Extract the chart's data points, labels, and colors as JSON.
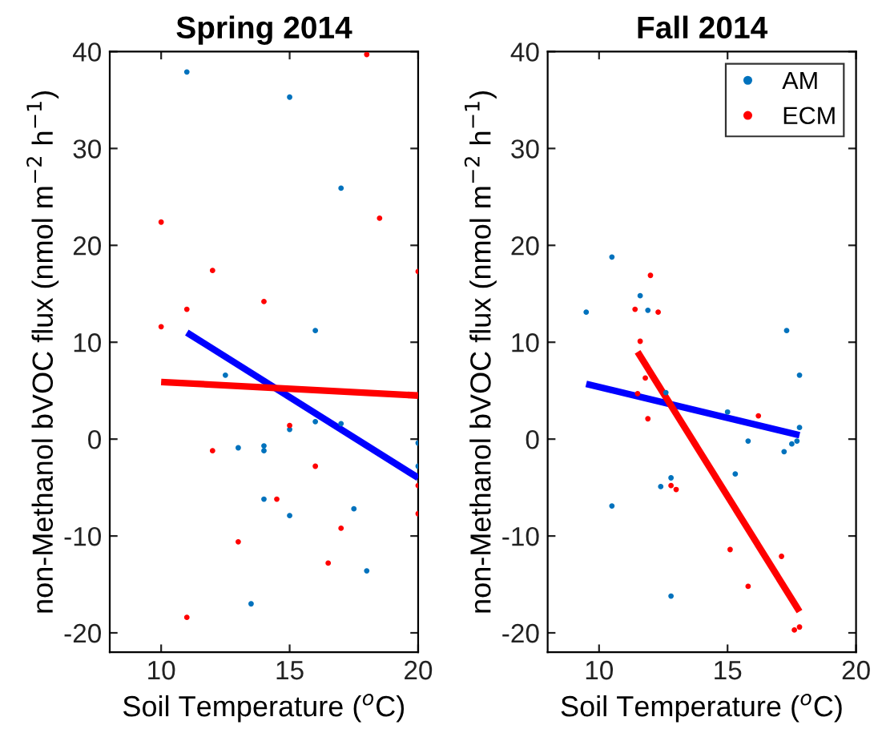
{
  "chart_data": [
    {
      "type": "scatter",
      "title": "Spring 2014",
      "xlabel": "Soil Temperature ($^{o}$C)",
      "ylabel": "non-Methanol bVOC flux (nmol m$^{−2}$ h$^{−1}$)",
      "xlim": [
        8,
        20
      ],
      "xticks": [
        10,
        15,
        20
      ],
      "ylim": [
        -22,
        40
      ],
      "yticks": [
        -20,
        -10,
        0,
        10,
        20,
        30,
        40
      ],
      "grid": false,
      "legend": false,
      "marker": "circle",
      "series": [
        {
          "color": "#0072bd",
          "x": [
            11.0,
            15.0,
            17.0,
            16.0,
            12.5,
            15.0,
            16.0,
            17.0,
            20.0,
            20.0,
            13.0,
            14.0,
            14.0,
            14.0,
            15.0,
            17.5,
            18.0,
            13.5
          ],
          "values": [
            37.9,
            35.3,
            25.9,
            11.2,
            6.6,
            1.0,
            1.8,
            1.6,
            -0.4,
            -2.8,
            -0.9,
            -0.7,
            -1.2,
            -6.2,
            -7.9,
            -7.2,
            -13.6,
            -17.0
          ]
        },
        {
          "color": "#ff0000",
          "x": [
            18.0,
            10.0,
            18.5,
            12.0,
            20.0,
            14.0,
            11.0,
            10.0,
            15.0,
            12.0,
            16.0,
            20.0,
            14.5,
            20.0,
            17.0,
            13.0,
            16.5,
            11.0
          ],
          "values": [
            39.7,
            22.4,
            22.8,
            17.4,
            17.3,
            14.2,
            13.4,
            11.6,
            1.4,
            -1.2,
            -2.8,
            -4.8,
            -6.2,
            -7.7,
            -9.2,
            -10.6,
            -12.8,
            -18.4
          ]
        },
        {
          "type": "line",
          "color": "#0000ff",
          "marker": "none",
          "line_style": "solid",
          "x": [
            11,
            20
          ],
          "values": [
            11.0,
            -4.0
          ]
        },
        {
          "type": "line",
          "color": "#ff0000",
          "marker": "none",
          "line_style": "solid",
          "x": [
            10,
            20
          ],
          "values": [
            5.9,
            4.5
          ]
        }
      ]
    },
    {
      "type": "scatter",
      "title": "Fall 2014",
      "xlabel": "Soil Temperature ($^{o}$C)",
      "ylabel": "non-Methanol bVOC flux (nmol m$^{−2}$ h$^{−1}$)",
      "xlim": [
        8,
        20
      ],
      "xticks": [
        10,
        15,
        20
      ],
      "ylim": [
        -22,
        40
      ],
      "yticks": [
        -20,
        -10,
        0,
        10,
        20,
        30,
        40
      ],
      "grid": false,
      "legend": "top right",
      "marker": "circle",
      "series": [
        {
          "name": "AM",
          "color": "#0072bd",
          "x": [
            9.5,
            10.5,
            11.6,
            11.9,
            12.6,
            10.5,
            12.8,
            12.4,
            12.8,
            15.0,
            15.8,
            15.3,
            17.3,
            17.8,
            17.8,
            17.7,
            17.5,
            17.2
          ],
          "values": [
            13.1,
            18.8,
            14.8,
            13.3,
            4.8,
            -6.9,
            -4.0,
            -4.9,
            -16.2,
            2.8,
            -0.2,
            -3.6,
            11.2,
            6.6,
            1.2,
            -0.2,
            -0.5,
            -1.3
          ]
        },
        {
          "name": "ECM",
          "color": "#ff0000",
          "x": [
            12.0,
            11.4,
            12.3,
            11.6,
            11.8,
            11.5,
            11.9,
            12.8,
            13.0,
            16.2,
            15.1,
            15.8,
            17.1,
            17.6,
            17.8
          ],
          "values": [
            16.9,
            13.4,
            13.1,
            10.1,
            6.3,
            4.7,
            2.1,
            -4.8,
            -5.2,
            2.4,
            -11.4,
            -15.2,
            -12.1,
            -19.7,
            -19.4
          ]
        },
        {
          "type": "line",
          "color": "#0000ff",
          "marker": "none",
          "line_style": "solid",
          "x": [
            9.5,
            17.8
          ],
          "values": [
            5.7,
            0.4
          ]
        },
        {
          "type": "line",
          "color": "#ff0000",
          "marker": "none",
          "line_style": "solid",
          "x": [
            11.5,
            17.8
          ],
          "values": [
            9.0,
            -17.8
          ]
        }
      ]
    }
  ]
}
